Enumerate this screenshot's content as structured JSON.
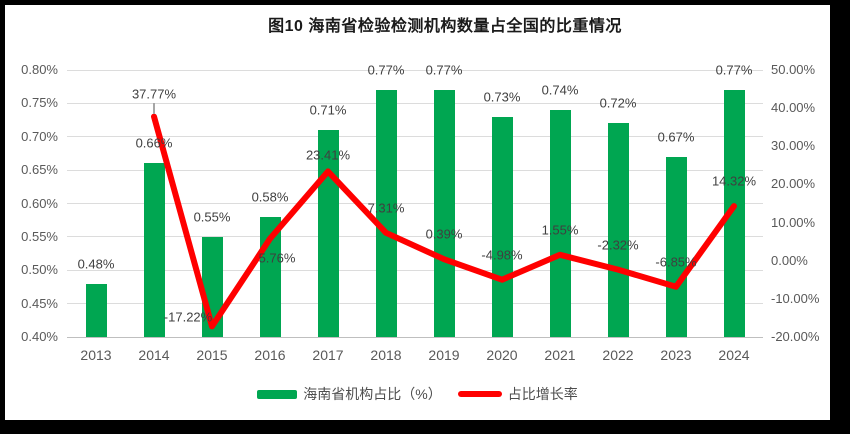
{
  "title": "图10  海南省检验检测机构数量占全国的比重情况",
  "chart_data": {
    "type": "combo_bar_line",
    "title": "图10  海南省检验检测机构数量占全国的比重情况",
    "categories": [
      "2013",
      "2014",
      "2015",
      "2016",
      "2017",
      "2018",
      "2019",
      "2020",
      "2021",
      "2022",
      "2023",
      "2024"
    ],
    "series": [
      {
        "name": "海南省机构占比（%）",
        "type": "bar",
        "axis": "left",
        "color": "#00A651",
        "values": [
          0.48,
          0.66,
          0.55,
          0.58,
          0.71,
          0.77,
          0.77,
          0.73,
          0.74,
          0.72,
          0.67,
          0.77
        ],
        "labels": [
          "0.48%",
          "0.66%",
          "0.55%",
          "0.58%",
          "0.71%",
          "0.77%",
          "0.77%",
          "0.73%",
          "0.74%",
          "0.72%",
          "0.67%",
          "0.77%"
        ]
      },
      {
        "name": "占比增长率",
        "type": "line",
        "axis": "right",
        "color": "#FF0000",
        "values": [
          null,
          37.77,
          -17.22,
          5.76,
          23.41,
          7.31,
          0.39,
          -4.98,
          1.55,
          -2.32,
          -6.85,
          14.32
        ],
        "labels": [
          null,
          "37.77%",
          "-17.22%",
          "5.76%",
          "23.41%",
          "7.31%",
          "0.39%",
          "-4.98%",
          "1.55%",
          "-2.32%",
          "-6.85%",
          "14.32%"
        ]
      }
    ],
    "left_axis": {
      "min": 0.4,
      "max": 0.8,
      "ticks": [
        "0.80%",
        "0.75%",
        "0.70%",
        "0.65%",
        "0.60%",
        "0.55%",
        "0.50%",
        "0.45%",
        "0.40%"
      ]
    },
    "right_axis": {
      "min": -20,
      "max": 50,
      "ticks": [
        "50.00%",
        "40.00%",
        "30.00%",
        "20.00%",
        "10.00%",
        "0.00%",
        "-10.00%",
        "-20.00%"
      ]
    },
    "grid": true,
    "legend_position": "bottom"
  },
  "legend": {
    "items": [
      {
        "label": "海南省机构占比（%）",
        "color": "#00A651",
        "shape": "rect"
      },
      {
        "label": "占比增长率",
        "color": "#FF0000",
        "shape": "line"
      }
    ]
  },
  "colors": {
    "bar": "#00A651",
    "line": "#FF0000",
    "grid": "#DCDCDC",
    "baseline": "#BFBFBF",
    "axis_text": "#595959",
    "data_label": "#3F3F3F",
    "frame": "#000000",
    "canvas": "#FFFFFF"
  }
}
